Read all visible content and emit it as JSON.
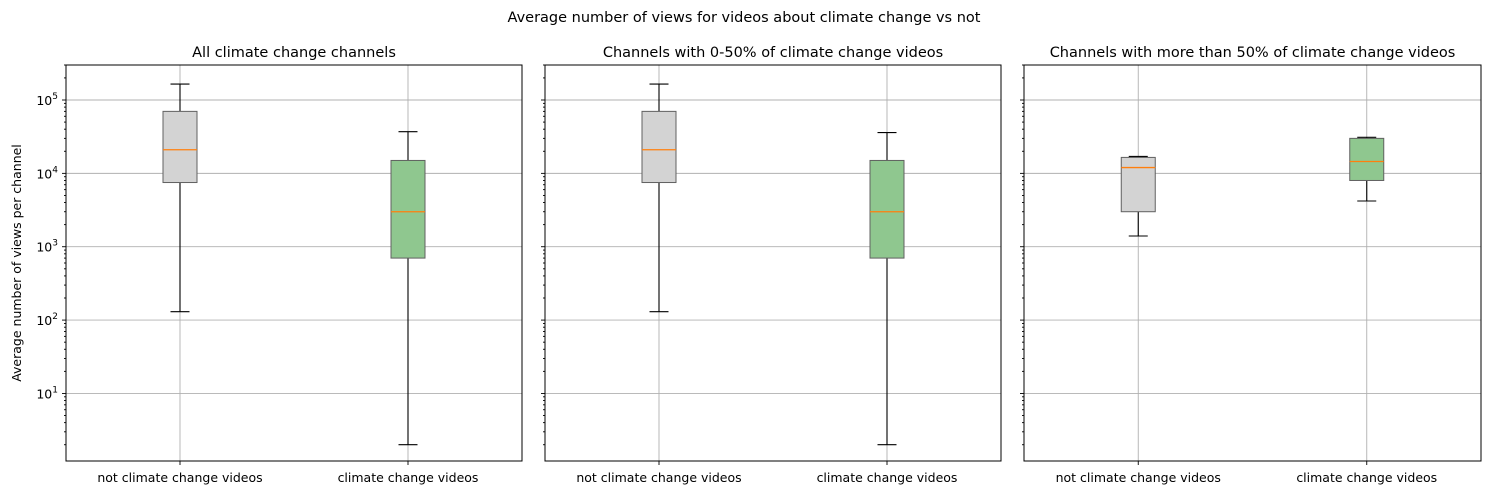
{
  "figure": {
    "title": "Average number of views for videos about climate change vs not",
    "ylabel": "Average number of views per channel"
  },
  "colors": {
    "box_not_climate": "#d3d3d3",
    "box_climate": "#8fc78f",
    "median": "#ff7f0e",
    "box_edge": "#606060"
  },
  "chart_data": [
    {
      "type": "box",
      "title": "All climate change channels",
      "yscale": "log",
      "ylim": [
        1.2,
        300000
      ],
      "yticks": [
        10,
        100,
        1000,
        10000,
        100000
      ],
      "ytick_labels": [
        {
          "base": "10",
          "exp": "1"
        },
        {
          "base": "10",
          "exp": "2"
        },
        {
          "base": "10",
          "exp": "3"
        },
        {
          "base": "10",
          "exp": "4"
        },
        {
          "base": "10",
          "exp": "5"
        }
      ],
      "grid": true,
      "categories": [
        "not climate change videos",
        "climate change videos"
      ],
      "boxes": [
        {
          "whislo": 130,
          "q1": 7500,
          "med": 21000,
          "q3": 70000,
          "whishi": 165000,
          "color": "box_not_climate"
        },
        {
          "whislo": 2,
          "q1": 700,
          "med": 3000,
          "q3": 15000,
          "whishi": 37000,
          "color": "box_climate"
        }
      ]
    },
    {
      "type": "box",
      "title": "Channels with 0-50% of climate change videos",
      "yscale": "log",
      "ylim": [
        1.2,
        300000
      ],
      "grid": true,
      "categories": [
        "not climate change videos",
        "climate change videos"
      ],
      "boxes": [
        {
          "whislo": 130,
          "q1": 7500,
          "med": 21000,
          "q3": 70000,
          "whishi": 165000,
          "color": "box_not_climate"
        },
        {
          "whislo": 2,
          "q1": 700,
          "med": 3000,
          "q3": 15000,
          "whishi": 36000,
          "color": "box_climate"
        }
      ]
    },
    {
      "type": "box",
      "title": "Channels with more than 50% of climate change videos",
      "yscale": "log",
      "ylim": [
        1.2,
        300000
      ],
      "grid": true,
      "categories": [
        "not climate change videos",
        "climate change videos"
      ],
      "boxes": [
        {
          "whislo": 1400,
          "q1": 3000,
          "med": 12000,
          "q3": 16500,
          "whishi": 17000,
          "color": "box_not_climate"
        },
        {
          "whislo": 4200,
          "q1": 8000,
          "med": 14500,
          "q3": 30000,
          "whishi": 31000,
          "color": "box_climate"
        }
      ]
    }
  ]
}
